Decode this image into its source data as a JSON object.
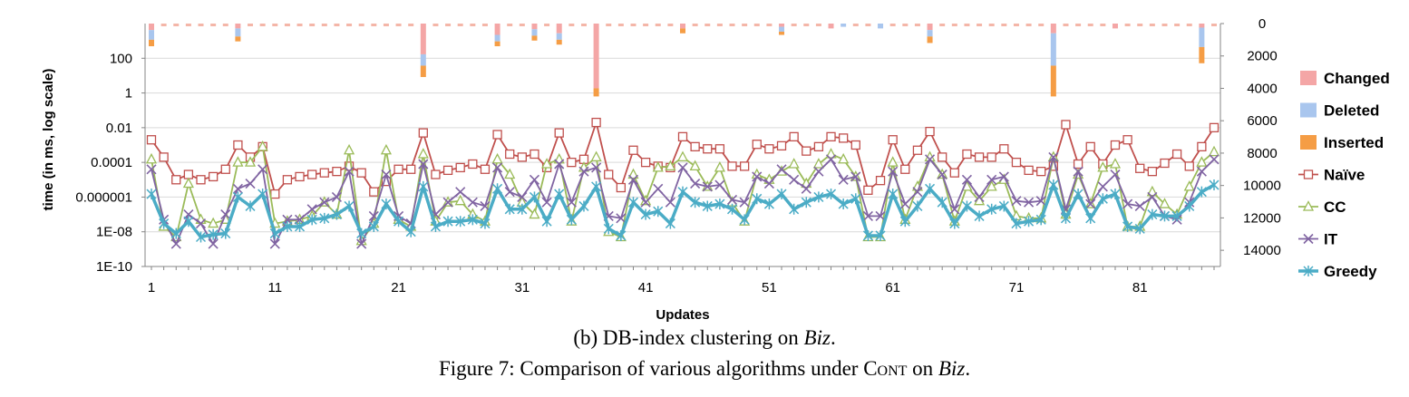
{
  "chart_data": {
    "type": "line",
    "title": "",
    "xlabel": "Updates",
    "ylabel": "time (in ms, log scale)",
    "y_scale": "log",
    "ylim": [
      1e-10,
      10000
    ],
    "y_ticks": [
      "100",
      "1",
      "0.01",
      "0.0001",
      "0.000001",
      "1E-08",
      "1E-10"
    ],
    "y_tick_values": [
      100,
      1,
      0.01,
      0.0001,
      1e-06,
      1e-08,
      1e-10
    ],
    "y2_ticks": [
      "0",
      "2000",
      "4000",
      "6000",
      "8000",
      "10000",
      "12000",
      "14000"
    ],
    "y2_tick_values": [
      0,
      2000,
      4000,
      6000,
      8000,
      10000,
      12000,
      14000
    ],
    "y2lim": [
      0,
      15000
    ],
    "y2_reversed": true,
    "x_ticks": [
      "1",
      "11",
      "21",
      "31",
      "41",
      "51",
      "61",
      "71",
      "81"
    ],
    "x_tick_values": [
      1,
      11,
      21,
      31,
      41,
      51,
      61,
      71,
      81
    ],
    "xlim": [
      1,
      87
    ],
    "legend_position": "right",
    "grid": "horizontal",
    "bar_series": [
      {
        "name": "Changed",
        "color": "#f4a6a6",
        "x": [
          1,
          8,
          23,
          29,
          32,
          34,
          37,
          44,
          52,
          56,
          64,
          74,
          79,
          86
        ],
        "values": [
          400,
          300,
          1900,
          700,
          350,
          600,
          4000,
          300,
          200,
          300,
          400,
          600,
          300,
          250
        ]
      },
      {
        "name": "Deleted",
        "color": "#a9c6ee",
        "x": [
          1,
          8,
          23,
          29,
          32,
          34,
          52,
          57,
          60,
          64,
          74,
          86
        ],
        "values": [
          600,
          500,
          700,
          400,
          400,
          400,
          300,
          200,
          300,
          400,
          2000,
          1200
        ]
      },
      {
        "name": "Inserted",
        "color": "#f59d45",
        "x": [
          1,
          8,
          23,
          29,
          32,
          34,
          37,
          44,
          52,
          64,
          74,
          86
        ],
        "values": [
          400,
          300,
          700,
          300,
          300,
          300,
          500,
          300,
          200,
          400,
          1900,
          1000
        ]
      }
    ],
    "series": [
      {
        "name": "Naïve",
        "color": "#c0504d",
        "marker": "square-open",
        "x": [
          1,
          2,
          3,
          4,
          5,
          6,
          7,
          8,
          9,
          10,
          11,
          12,
          13,
          14,
          15,
          16,
          17,
          18,
          19,
          20,
          21,
          22,
          23,
          24,
          25,
          26,
          27,
          28,
          29,
          30,
          31,
          32,
          33,
          34,
          35,
          36,
          37,
          38,
          39,
          40,
          41,
          42,
          43,
          44,
          45,
          46,
          47,
          48,
          49,
          50,
          51,
          52,
          53,
          54,
          55,
          56,
          57,
          58,
          59,
          60,
          61,
          62,
          63,
          64,
          65,
          66,
          67,
          68,
          69,
          70,
          71,
          72,
          73,
          74,
          75,
          76,
          77,
          78,
          79,
          80,
          81,
          82,
          83,
          84,
          85,
          86,
          87
        ],
        "values": [
          0.002,
          0.0002,
          1e-05,
          2e-05,
          1e-05,
          1.5e-05,
          4e-05,
          0.001,
          0.0002,
          0.0008,
          1.5e-06,
          1e-05,
          1.5e-05,
          2e-05,
          2.5e-05,
          3e-05,
          6e-05,
          2.5e-05,
          2e-06,
          8e-06,
          4e-05,
          4e-05,
          0.005,
          2e-05,
          3.5e-05,
          5e-05,
          8e-05,
          4e-05,
          0.004,
          0.0003,
          0.0002,
          0.0003,
          5e-05,
          0.005,
          0.0001,
          0.00015,
          0.02,
          2e-05,
          3.5e-06,
          0.0005,
          0.0001,
          6e-05,
          5e-05,
          0.003,
          0.0008,
          0.0006,
          0.0006,
          6e-05,
          6e-05,
          0.0011,
          0.0006,
          0.0009,
          0.003,
          0.00045,
          0.0008,
          0.003,
          0.0025,
          0.001,
          2.5e-06,
          9e-06,
          0.002,
          4e-05,
          0.0005,
          0.006,
          0.0002,
          2.5e-05,
          0.0003,
          0.0002,
          0.0002,
          0.0006,
          0.0001,
          3.5e-05,
          3e-05,
          6e-05,
          0.015,
          8e-05,
          0.0008,
          8e-05,
          0.001,
          0.002,
          4.5e-05,
          3e-05,
          9e-05,
          0.0003,
          6e-05,
          0.0008,
          0.01
        ]
      },
      {
        "name": "CC",
        "color": "#9bbb59",
        "marker": "triangle-open",
        "x": [
          1,
          2,
          3,
          4,
          5,
          6,
          7,
          8,
          9,
          10,
          11,
          12,
          13,
          14,
          15,
          16,
          17,
          18,
          19,
          20,
          21,
          22,
          23,
          24,
          25,
          26,
          27,
          28,
          29,
          30,
          31,
          32,
          33,
          34,
          35,
          36,
          37,
          38,
          39,
          40,
          41,
          42,
          43,
          44,
          45,
          46,
          47,
          48,
          49,
          50,
          51,
          52,
          53,
          54,
          55,
          56,
          57,
          58,
          59,
          60,
          61,
          62,
          63,
          64,
          65,
          66,
          67,
          68,
          69,
          70,
          71,
          72,
          73,
          74,
          75,
          76,
          77,
          78,
          79,
          80,
          81,
          82,
          83,
          84,
          85,
          86,
          87
        ],
        "values": [
          0.00015,
          2e-08,
          5e-09,
          6e-06,
          5e-08,
          3e-08,
          5e-08,
          0.0001,
          0.0001,
          0.0008,
          3e-08,
          4e-08,
          5e-08,
          8e-08,
          5e-07,
          1e-07,
          0.0005,
          3e-09,
          3e-08,
          0.0005,
          5e-08,
          2e-08,
          0.0003,
          4e-08,
          5e-07,
          6e-07,
          1e-07,
          4e-08,
          0.00015,
          2e-05,
          5e-07,
          1e-07,
          8e-05,
          0.00015,
          4e-08,
          5e-05,
          0.0002,
          1e-08,
          5e-09,
          2e-05,
          6e-07,
          5e-05,
          6e-05,
          0.0002,
          6e-05,
          4e-06,
          5e-05,
          5e-07,
          4e-08,
          2e-05,
          1e-05,
          3e-05,
          8e-05,
          6e-06,
          8e-05,
          0.0003,
          0.00015,
          1.5e-05,
          5e-09,
          5e-09,
          0.0001,
          5e-08,
          4e-06,
          0.0002,
          2e-05,
          4e-08,
          4e-06,
          6e-07,
          4e-06,
          1e-05,
          8e-08,
          6e-08,
          6e-08,
          0.0002,
          1e-07,
          2e-05,
          4e-07,
          5e-05,
          8e-05,
          2e-08,
          2e-08,
          2e-06,
          4e-07,
          1e-07,
          4e-06,
          0.0001,
          0.0004
        ]
      },
      {
        "name": "IT",
        "color": "#8064a2",
        "marker": "x",
        "x": [
          1,
          2,
          3,
          4,
          5,
          6,
          7,
          8,
          9,
          10,
          11,
          12,
          13,
          14,
          15,
          16,
          17,
          18,
          19,
          20,
          21,
          22,
          23,
          24,
          25,
          26,
          27,
          28,
          29,
          30,
          31,
          32,
          33,
          34,
          35,
          36,
          37,
          38,
          39,
          40,
          41,
          42,
          43,
          44,
          45,
          46,
          47,
          48,
          49,
          50,
          51,
          52,
          53,
          54,
          55,
          56,
          57,
          58,
          59,
          60,
          61,
          62,
          63,
          64,
          65,
          66,
          67,
          68,
          69,
          70,
          71,
          72,
          73,
          74,
          75,
          76,
          77,
          78,
          79,
          80,
          81,
          82,
          83,
          84,
          85,
          86,
          87
        ],
        "values": [
          4e-05,
          5e-08,
          2e-09,
          1e-07,
          3e-08,
          2e-09,
          1e-07,
          3e-06,
          6e-06,
          4e-05,
          2e-09,
          5e-08,
          5e-08,
          2e-07,
          5e-07,
          1e-06,
          3e-05,
          2e-09,
          8e-08,
          2e-05,
          8e-08,
          3e-08,
          8e-05,
          1e-07,
          5e-07,
          2e-06,
          5e-07,
          3e-07,
          5e-05,
          2e-06,
          1e-06,
          1e-05,
          5e-07,
          8e-05,
          5e-07,
          3e-05,
          5e-05,
          8e-08,
          6e-08,
          1e-05,
          5e-07,
          3e-06,
          5e-07,
          5e-05,
          6e-06,
          4e-06,
          5e-06,
          7e-07,
          5e-07,
          1.5e-05,
          6e-06,
          4e-05,
          1e-05,
          3e-06,
          3e-05,
          0.00015,
          1e-05,
          1.5e-05,
          8e-08,
          8e-08,
          3e-05,
          4e-07,
          2e-06,
          0.00015,
          2e-05,
          2e-07,
          1e-05,
          1e-06,
          1e-05,
          1.5e-05,
          6e-07,
          5e-07,
          6e-07,
          0.0002,
          2e-07,
          3e-05,
          4e-07,
          4e-06,
          2e-05,
          4e-07,
          3e-07,
          1e-06,
          8e-08,
          5e-08,
          5e-07,
          3e-05,
          0.00015
        ]
      },
      {
        "name": "Greedy",
        "color": "#4bacc6",
        "marker": "asterisk",
        "x": [
          1,
          2,
          3,
          4,
          5,
          6,
          7,
          8,
          9,
          10,
          11,
          12,
          13,
          14,
          15,
          16,
          17,
          18,
          19,
          20,
          21,
          22,
          23,
          24,
          25,
          26,
          27,
          28,
          29,
          30,
          31,
          32,
          33,
          34,
          35,
          36,
          37,
          38,
          39,
          40,
          41,
          42,
          43,
          44,
          45,
          46,
          47,
          48,
          49,
          50,
          51,
          52,
          53,
          54,
          55,
          56,
          57,
          58,
          59,
          60,
          61,
          62,
          63,
          64,
          65,
          66,
          67,
          68,
          69,
          70,
          71,
          72,
          73,
          74,
          75,
          76,
          77,
          78,
          79,
          80,
          81,
          82,
          83,
          84,
          85,
          86,
          87
        ],
        "values": [
          1.5e-06,
          3e-08,
          8e-09,
          4e-08,
          5e-09,
          7e-09,
          8e-09,
          1e-06,
          3e-07,
          1.5e-06,
          8e-09,
          2e-08,
          2e-08,
          5e-08,
          6e-08,
          1e-07,
          3e-07,
          8e-09,
          2e-08,
          4e-07,
          4e-08,
          1e-08,
          4e-06,
          2e-08,
          4e-08,
          4e-08,
          5e-08,
          3e-08,
          3e-06,
          2e-07,
          2e-07,
          1e-06,
          4e-08,
          1.5e-06,
          5e-08,
          3e-07,
          4e-06,
          1.5e-08,
          6e-09,
          5e-07,
          1e-07,
          1.5e-07,
          3e-08,
          2e-06,
          5e-07,
          3e-07,
          4e-07,
          2e-07,
          5e-08,
          8e-07,
          4e-07,
          1.5e-06,
          2e-07,
          5e-07,
          1e-06,
          1.5e-06,
          4e-07,
          8e-07,
          6e-09,
          6e-09,
          1.5e-06,
          4e-08,
          3e-07,
          3e-06,
          5e-07,
          3e-08,
          3e-07,
          8e-08,
          2e-07,
          3e-07,
          3e-08,
          4e-08,
          5e-08,
          5e-06,
          6e-08,
          1.5e-06,
          6e-08,
          8e-07,
          1.5e-06,
          2e-08,
          1.5e-08,
          1e-07,
          8e-08,
          8e-08,
          3e-07,
          2e-06,
          5e-06
        ]
      }
    ]
  },
  "captions": {
    "sub": "(b) DB-index clustering on Biz.",
    "figure": "Figure 7: Comparison of various algorithms under Cont on Biz."
  }
}
